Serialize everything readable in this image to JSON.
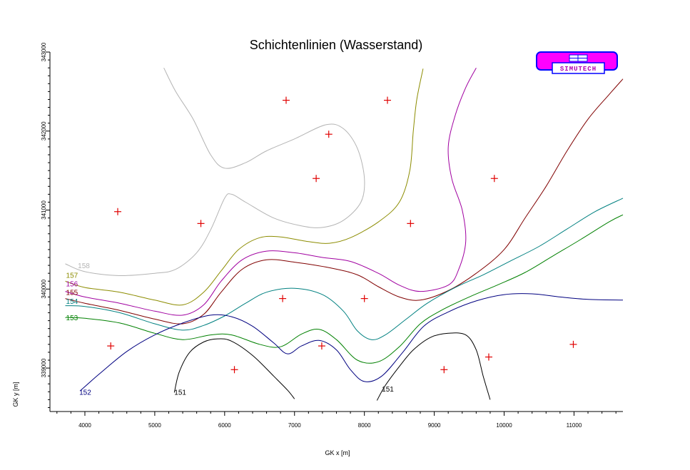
{
  "chart_data": {
    "type": "contour",
    "title": "Schichtenlinien (Wasserstand)",
    "xlabel": "GK x [m]",
    "ylabel": "GK y [m]",
    "xlim": [
      3500,
      11700
    ],
    "ylim": [
      338450,
      343000
    ],
    "x_ticks": [
      4000,
      5000,
      6000,
      7000,
      8000,
      9000,
      10000,
      11000
    ],
    "y_ticks": [
      339000,
      340000,
      341000,
      342000,
      343000
    ],
    "logo": "SIMUTECH",
    "contours": [
      {
        "level": "158",
        "color": "#b4b4b4",
        "label_at": [
          3900,
          340300
        ],
        "label_color": "#b4b4b4",
        "paths": [
          [
            [
              3720,
              340320
            ],
            [
              4000,
              340220
            ],
            [
              4500,
              340170
            ],
            [
              5000,
              340200
            ],
            [
              5300,
              340250
            ],
            [
              5600,
              340460
            ],
            [
              5800,
              340750
            ],
            [
              6000,
              341150
            ],
            [
              6100,
              341200
            ],
            [
              6300,
              341100
            ],
            [
              6700,
              340900
            ],
            [
              7100,
              340800
            ],
            [
              7400,
              340780
            ],
            [
              7700,
              340870
            ],
            [
              7950,
              341100
            ],
            [
              8000,
              341400
            ],
            [
              7900,
              341780
            ],
            [
              7700,
              342030
            ],
            [
              7450,
              342080
            ],
            [
              7000,
              341900
            ],
            [
              6600,
              341750
            ],
            [
              6300,
              341600
            ],
            [
              6000,
              341530
            ],
            [
              5800,
              341700
            ],
            [
              5550,
              342150
            ],
            [
              5300,
              342500
            ],
            [
              5130,
              342800
            ]
          ]
        ]
      },
      {
        "level": "157",
        "color": "#8c8c00",
        "label_at": [
          3730,
          340180
        ],
        "label_color": "#8c8c00",
        "paths": [
          [
            [
              3720,
              340100
            ],
            [
              4000,
              340020
            ],
            [
              4500,
              339960
            ],
            [
              5000,
              339860
            ],
            [
              5400,
              339800
            ],
            [
              5700,
              339960
            ],
            [
              5950,
              340230
            ],
            [
              6200,
              340500
            ],
            [
              6500,
              340650
            ],
            [
              6800,
              340660
            ],
            [
              7200,
              340600
            ],
            [
              7500,
              340580
            ],
            [
              7800,
              340650
            ],
            [
              8200,
              340850
            ],
            [
              8500,
              341100
            ],
            [
              8650,
              341500
            ],
            [
              8700,
              342000
            ],
            [
              8750,
              342400
            ],
            [
              8840,
              342790
            ]
          ]
        ]
      },
      {
        "level": "156",
        "color": "#a000a0",
        "label_at": [
          3730,
          340070
        ],
        "label_color": "#a000a0",
        "paths": [
          [
            [
              3720,
              339970
            ],
            [
              4000,
              339900
            ],
            [
              4500,
              339820
            ],
            [
              5000,
              339720
            ],
            [
              5400,
              339670
            ],
            [
              5700,
              339800
            ],
            [
              5950,
              340100
            ],
            [
              6250,
              340370
            ],
            [
              6600,
              340480
            ],
            [
              7000,
              340460
            ],
            [
              7400,
              340400
            ],
            [
              7800,
              340350
            ],
            [
              8200,
              340200
            ],
            [
              8500,
              340050
            ],
            [
              8800,
              339970
            ],
            [
              9200,
              340050
            ],
            [
              9350,
              340250
            ],
            [
              9450,
              340600
            ],
            [
              9400,
              341000
            ],
            [
              9250,
              341400
            ],
            [
              9200,
              341800
            ],
            [
              9300,
              342200
            ],
            [
              9450,
              342550
            ],
            [
              9600,
              342800
            ]
          ]
        ]
      },
      {
        "level": "155",
        "color": "#800000",
        "label_at": [
          3730,
          339960
        ],
        "label_color": "#800000",
        "paths": [
          [
            [
              3720,
              339880
            ],
            [
              4000,
              339820
            ],
            [
              4500,
              339730
            ],
            [
              5000,
              339620
            ],
            [
              5400,
              339560
            ],
            [
              5700,
              339680
            ],
            [
              5950,
              339960
            ],
            [
              6250,
              340250
            ],
            [
              6600,
              340370
            ],
            [
              7000,
              340340
            ],
            [
              7500,
              340270
            ],
            [
              7900,
              340180
            ],
            [
              8200,
              340030
            ],
            [
              8500,
              339900
            ],
            [
              8800,
              339860
            ],
            [
              9200,
              339980
            ],
            [
              9600,
              340200
            ],
            [
              10000,
              340500
            ],
            [
              10300,
              340900
            ],
            [
              10600,
              341300
            ],
            [
              10900,
              341750
            ],
            [
              11200,
              342150
            ],
            [
              11500,
              342460
            ],
            [
              11700,
              342660
            ]
          ]
        ]
      },
      {
        "level": "154",
        "color": "#008080",
        "label_at": [
          3730,
          339850
        ],
        "label_color": "#008080",
        "paths": [
          [
            [
              3720,
              339790
            ],
            [
              4000,
              339780
            ],
            [
              4500,
              339700
            ],
            [
              5000,
              339560
            ],
            [
              5400,
              339480
            ],
            [
              5700,
              339540
            ],
            [
              6000,
              339660
            ],
            [
              6300,
              339820
            ],
            [
              6600,
              339960
            ],
            [
              7000,
              340010
            ],
            [
              7400,
              339930
            ],
            [
              7700,
              339720
            ],
            [
              7900,
              339470
            ],
            [
              8100,
              339360
            ],
            [
              8300,
              339420
            ],
            [
              8600,
              339620
            ],
            [
              8900,
              339820
            ],
            [
              9300,
              340020
            ],
            [
              9700,
              340180
            ],
            [
              10100,
              340360
            ],
            [
              10500,
              340540
            ],
            [
              10900,
              340760
            ],
            [
              11300,
              340980
            ],
            [
              11700,
              341150
            ]
          ]
        ]
      },
      {
        "level": "153",
        "color": "#008000",
        "label_at": [
          3730,
          339640
        ],
        "label_color": "#008000",
        "paths": [
          [
            [
              3720,
              339640
            ],
            [
              4000,
              339630
            ],
            [
              4500,
              339570
            ],
            [
              5000,
              339440
            ],
            [
              5400,
              339360
            ],
            [
              5800,
              339420
            ],
            [
              6100,
              339420
            ],
            [
              6500,
              339300
            ],
            [
              6800,
              339270
            ],
            [
              7100,
              339430
            ],
            [
              7350,
              339490
            ],
            [
              7600,
              339360
            ],
            [
              7900,
              339100
            ],
            [
              8200,
              339080
            ],
            [
              8500,
              339270
            ],
            [
              8800,
              339560
            ],
            [
              9100,
              339730
            ],
            [
              9500,
              339900
            ],
            [
              9900,
              340050
            ],
            [
              10300,
              340210
            ],
            [
              10700,
              340420
            ],
            [
              11100,
              340630
            ],
            [
              11500,
              340850
            ],
            [
              11700,
              340940
            ]
          ]
        ]
      },
      {
        "level": "152",
        "color": "#000080",
        "label_at": [
          3920,
          338700
        ],
        "label_color": "#000080",
        "paths": [
          [
            [
              3930,
              338710
            ],
            [
              4200,
              338920
            ],
            [
              4600,
              339210
            ],
            [
              5000,
              339420
            ],
            [
              5400,
              339570
            ],
            [
              5800,
              339670
            ],
            [
              6100,
              339650
            ],
            [
              6400,
              339530
            ],
            [
              6700,
              339320
            ],
            [
              6900,
              339180
            ],
            [
              7100,
              339280
            ],
            [
              7350,
              339350
            ],
            [
              7600,
              339230
            ],
            [
              7800,
              338980
            ],
            [
              8000,
              338830
            ],
            [
              8250,
              338900
            ],
            [
              8550,
              339200
            ],
            [
              8850,
              339530
            ],
            [
              9200,
              339710
            ],
            [
              9600,
              339850
            ],
            [
              10000,
              339930
            ],
            [
              10400,
              339940
            ],
            [
              10800,
              339900
            ],
            [
              11200,
              339870
            ],
            [
              11700,
              339860
            ]
          ]
        ]
      },
      {
        "level": "151",
        "color": "#000000",
        "label_at": [
          5280,
          338700
        ],
        "label_color": "#000000",
        "paths": [
          [
            [
              5280,
              338690
            ],
            [
              5350,
              338950
            ],
            [
              5500,
              339200
            ],
            [
              5700,
              339330
            ],
            [
              5900,
              339370
            ],
            [
              6100,
              339340
            ],
            [
              6400,
              339160
            ],
            [
              6700,
              338900
            ],
            [
              6900,
              338720
            ],
            [
              7000,
              338610
            ]
          ]
        ]
      },
      {
        "level": "151",
        "color": "#000000",
        "label_at": [
          8250,
          338740
        ],
        "label_color": "#000000",
        "paths": [
          [
            [
              8180,
              338590
            ],
            [
              8300,
              338780
            ],
            [
              8500,
              339020
            ],
            [
              8700,
              339230
            ],
            [
              8950,
              339390
            ],
            [
              9200,
              339440
            ],
            [
              9450,
              339420
            ],
            [
              9600,
              339230
            ],
            [
              9700,
              338900
            ],
            [
              9800,
              338600
            ]
          ]
        ]
      }
    ],
    "points": [
      [
        6880,
        342390
      ],
      [
        8330,
        342390
      ],
      [
        7490,
        341960
      ],
      [
        7310,
        341400
      ],
      [
        9860,
        341400
      ],
      [
        4470,
        340980
      ],
      [
        5660,
        340830
      ],
      [
        8660,
        340830
      ],
      [
        6830,
        339880
      ],
      [
        8000,
        339880
      ],
      [
        4370,
        339280
      ],
      [
        7390,
        339280
      ],
      [
        9780,
        339140
      ],
      [
        10990,
        339300
      ],
      [
        6140,
        338980
      ],
      [
        9140,
        338980
      ]
    ]
  }
}
